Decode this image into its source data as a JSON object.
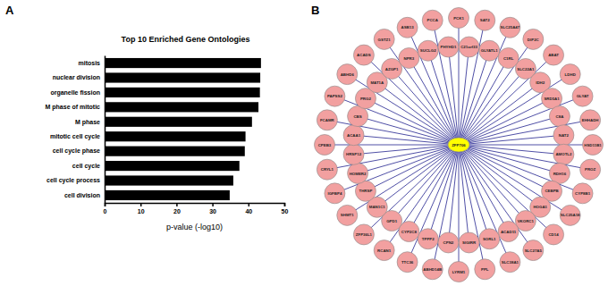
{
  "panel_labels": [
    "A",
    "B"
  ],
  "chart_data": {
    "type": "bar",
    "orientation": "horizontal",
    "title": "Top 10 Enriched Gene Ontologies",
    "categories": [
      "mitosis",
      "nuclear division",
      "organelle fission",
      "M phase of mitotic",
      "M phase",
      "mitotic cell cycle",
      "cell cycle phase",
      "cell cycle",
      "cell cycle process",
      "cell division"
    ],
    "values": [
      43.5,
      43.3,
      43.2,
      42.8,
      41.0,
      39.2,
      39.0,
      37.5,
      35.8,
      34.8
    ],
    "color": "#000000",
    "xlabel": "p-value (-log10)",
    "xlim": [
      0,
      50
    ],
    "xticks": [
      0,
      10,
      20,
      30,
      40,
      50
    ],
    "grid": false
  },
  "network": {
    "center": "ZFP706",
    "nodes": [
      "PCK1",
      "C21orf33",
      "SAT2",
      "GLYATL1",
      "SLC25A47",
      "C1RL",
      "DIP2C",
      "SLC22A1",
      "ABAT",
      "IDH2",
      "LDHD",
      "SRD5A1",
      "GLYAT",
      "C8A",
      "EHHADH",
      "NAT2",
      "HSD11B1",
      "AMOTL2",
      "PROZ",
      "RDH16",
      "CYP8B1",
      "CEBPB",
      "SLC25A18",
      "HOGA1",
      "CD14",
      "VKORC1",
      "SLC27A5",
      "ACAD11",
      "SLC38A1",
      "SORL1",
      "PPL",
      "SIGIRR",
      "LYRM1",
      "CPN2",
      "ABHD14B",
      "TPPP2",
      "TTC36",
      "CYP2C8",
      "RCAN1",
      "GPD1",
      "ZFP36L1",
      "MAN1C1",
      "SHMT1",
      "THRSP",
      "IGFBP4",
      "HOMER2",
      "CRYL1",
      "HRSP12",
      "CPEB3",
      "ACAA1",
      "FCAMR",
      "CBS",
      "PAPSS2",
      "PRG2",
      "ABHD6",
      "MAT1A",
      "ACADS",
      "AZGP1",
      "GSTZ1",
      "NPR3",
      "ASB13",
      "SUCLG2",
      "PCCA",
      "PHYHD1"
    ]
  }
}
